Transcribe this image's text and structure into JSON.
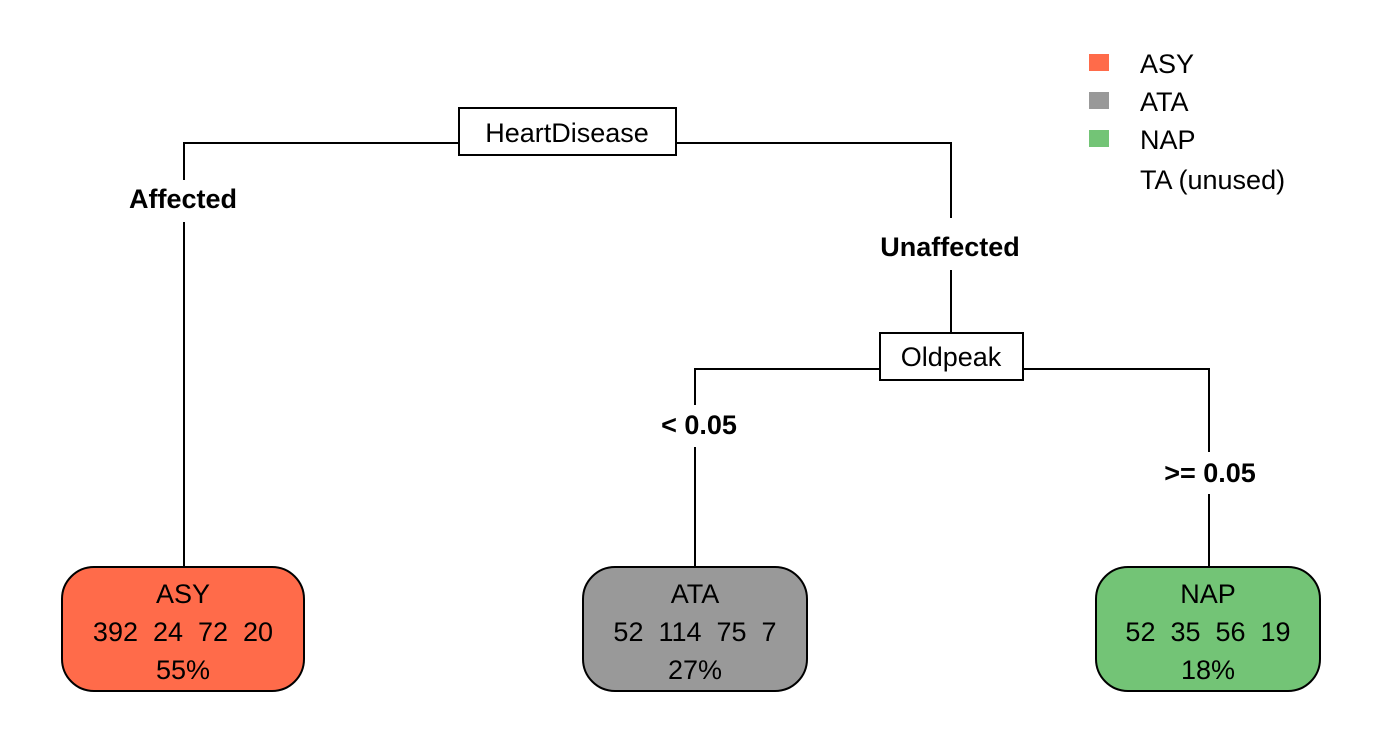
{
  "colors": {
    "ASY": "#FF6B4A",
    "ATA": "#999999",
    "NAP": "#73C476"
  },
  "tree": {
    "root": {
      "split": "HeartDisease",
      "left_label": "Affected",
      "right_label": "Unaffected"
    },
    "node2": {
      "split": "Oldpeak",
      "left_label": "< 0.05",
      "right_label": ">= 0.05"
    },
    "leaves": [
      {
        "class": "ASY",
        "counts": "392  24  72  20",
        "percent": "55%",
        "color_key": "ASY"
      },
      {
        "class": "ATA",
        "counts": "52  114  75  7",
        "percent": "27%",
        "color_key": "ATA"
      },
      {
        "class": "NAP",
        "counts": "52  35  56  19",
        "percent": "18%",
        "color_key": "NAP"
      }
    ]
  },
  "legend": [
    {
      "label": "ASY",
      "swatch": "ASY"
    },
    {
      "label": "ATA",
      "swatch": "ATA"
    },
    {
      "label": "NAP",
      "swatch": "NAP"
    },
    {
      "label": "TA (unused)",
      "swatch": ""
    }
  ]
}
